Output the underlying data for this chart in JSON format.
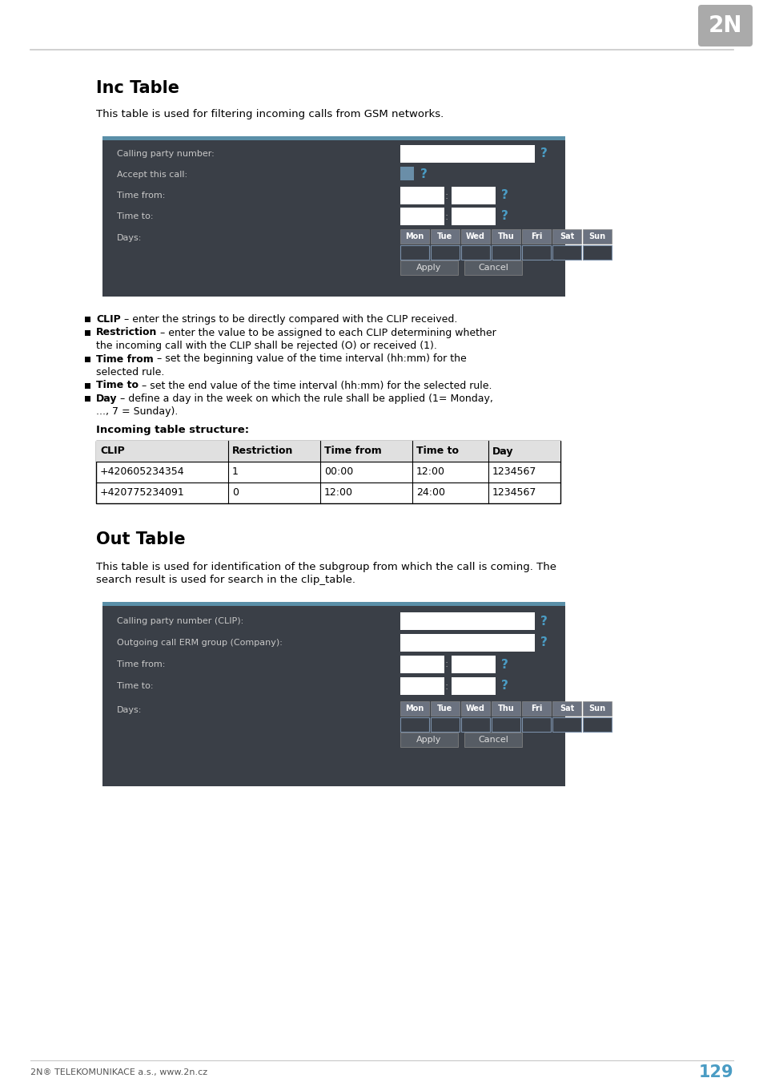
{
  "page_bg": "#ffffff",
  "header_line_color": "#c8c8c8",
  "footer_text_left": "2N® TELEKOMUNIKACE a.s., www.2n.cz",
  "footer_page": "129",
  "inc_title": "Inc Table",
  "inc_desc": "This table is used for filtering incoming calls from GSM networks.",
  "inc_ui_fields": [
    "Calling party number:",
    "Accept this call:",
    "Time from:",
    "Time to:",
    "Days:"
  ],
  "days_labels": [
    "Mon",
    "Tue",
    "Wed",
    "Thu",
    "Fri",
    "Sat",
    "Sun"
  ],
  "bullet_items": [
    {
      "bold": "CLIP",
      "rest": " – enter the strings to be directly compared with the CLIP received.",
      "extra": ""
    },
    {
      "bold": "Restriction",
      "rest": " – enter the value to be assigned to each CLIP determining whether",
      "extra": "the incoming call with the CLIP shall be rejected (O) or received (1)."
    },
    {
      "bold": "Time from",
      "rest": " – set the beginning value of the time interval (hh:mm) for the",
      "extra": "selected rule."
    },
    {
      "bold": "Time to",
      "rest": " – set the end value of the time interval (hh:mm) for the selected rule.",
      "extra": ""
    },
    {
      "bold": "Day",
      "rest": " – define a day in the week on which the rule shall be applied (1= Monday,",
      "extra": "..., 7 = Sunday)."
    }
  ],
  "inc_table_title": "Incoming table structure:",
  "inc_table_headers": [
    "CLIP",
    "Restriction",
    "Time from",
    "Time to",
    "Day"
  ],
  "inc_table_col_widths": [
    165,
    115,
    115,
    95,
    90
  ],
  "inc_table_rows": [
    [
      "+420605234354",
      "1",
      "00:00",
      "12:00",
      "1234567"
    ],
    [
      "+420775234091",
      "0",
      "12:00",
      "24:00",
      "1234567"
    ]
  ],
  "out_title": "Out Table",
  "out_desc_line1": "This table is used for identification of the subgroup from which the call is coming. The",
  "out_desc_line2": "search result is used for search in the clip_table.",
  "out_ui_fields": [
    "Calling party number (CLIP):",
    "Outgoing call ERM group (Company):",
    "Time from:",
    "Time to:",
    "Days:"
  ],
  "blue_color": "#4a9cc4",
  "dark_bg": "#3a3f47",
  "days_header_bg": "#6b7280",
  "checkbox_bg": "#555b63",
  "checkbox_border_color": "#7a8fa8",
  "accent_stripe": "#5a8fa8",
  "btn_bg": "#565c64",
  "logo_bg": "#aaaaaa",
  "logo_text": "2N"
}
